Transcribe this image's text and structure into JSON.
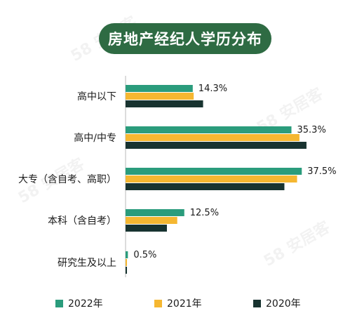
{
  "title": "房地产经纪人学历分布",
  "colors": {
    "2022": "#2a9c7c",
    "2021": "#f5b731",
    "2020": "#183330",
    "title_bg": "#2e6b43"
  },
  "chart_data": {
    "type": "bar",
    "orientation": "horizontal",
    "title": "房地产经纪人学历分布",
    "categories": [
      "高中以下",
      "高中/中专",
      "大专（含自考、高职）",
      "本科（含自考）",
      "研究生及以上"
    ],
    "series": [
      {
        "name": "2022年",
        "values": [
          14.3,
          35.3,
          37.5,
          12.5,
          0.5
        ]
      },
      {
        "name": "2021年",
        "values": [
          14.5,
          37.0,
          36.5,
          11.0,
          0.3
        ]
      },
      {
        "name": "2020年",
        "values": [
          16.5,
          38.5,
          33.8,
          8.8,
          0.3
        ]
      }
    ],
    "data_labels": [
      "14.3%",
      "35.3%",
      "37.5%",
      "12.5%",
      "0.5%"
    ],
    "legend_position": "bottom",
    "grid": false
  },
  "watermark_text": "58 安居客"
}
